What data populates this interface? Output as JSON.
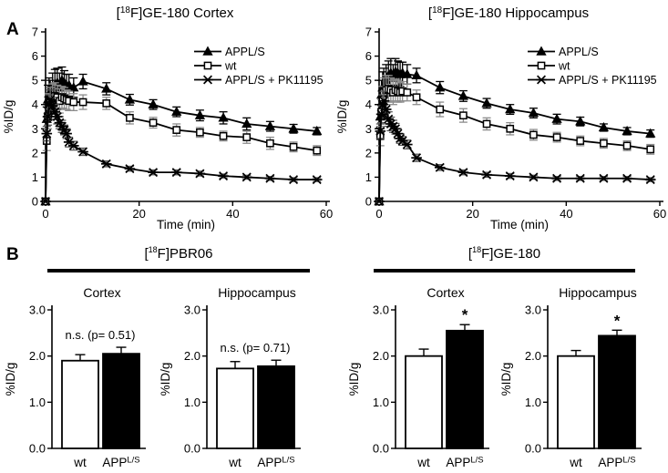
{
  "panelA": {
    "label": "A"
  },
  "panelB": {
    "label": "B"
  },
  "group_headers": [
    {
      "pre": "[",
      "sup": "18",
      "post": "F]PBR06"
    },
    {
      "pre": "[",
      "sup": "18",
      "post": "F]GE-180"
    }
  ],
  "chart_data": [
    {
      "type": "line",
      "title": {
        "pre": "[",
        "sup": "18",
        "post": "F]GE-180 Cortex"
      },
      "xlabel": "Time (min)",
      "ylabel": "%ID/g",
      "xlim": [
        0,
        60
      ],
      "ylim": [
        0,
        7
      ],
      "xticks": [
        0,
        20,
        40,
        60
      ],
      "yticks": [
        0,
        1,
        2,
        3,
        4,
        5,
        6,
        7
      ],
      "legend_position": "top-right",
      "x": [
        0,
        0.25,
        0.5,
        0.75,
        1,
        1.5,
        2,
        2.5,
        3,
        3.5,
        4,
        4.5,
        5,
        6,
        8,
        13,
        18,
        23,
        28,
        33,
        38,
        43,
        48,
        53,
        58
      ],
      "series": [
        {
          "name": "APPL/S",
          "marker": "triangle",
          "err_color": "#000000",
          "values": [
            0,
            3.4,
            4.2,
            4.45,
            4.3,
            4.6,
            4.8,
            4.9,
            4.7,
            5.0,
            4.9,
            4.75,
            4.8,
            4.7,
            4.95,
            4.65,
            4.2,
            4.0,
            3.7,
            3.55,
            3.45,
            3.2,
            3.1,
            3.0,
            2.9
          ],
          "err": [
            0,
            0.5,
            0.6,
            0.65,
            0.7,
            0.7,
            0.65,
            0.6,
            0.6,
            0.55,
            0.5,
            0.5,
            0.45,
            0.4,
            0.3,
            0.25,
            0.22,
            0.2,
            0.2,
            0.22,
            0.25,
            0.25,
            0.2,
            0.18,
            0.15
          ]
        },
        {
          "name": "wt",
          "marker": "square",
          "err_color": "#8c8c8c",
          "values": [
            0,
            2.5,
            3.5,
            3.9,
            4.1,
            4.25,
            4.35,
            4.3,
            4.15,
            4.3,
            4.25,
            4.2,
            4.15,
            4.1,
            4.1,
            4.05,
            3.45,
            3.25,
            2.95,
            2.85,
            2.7,
            2.65,
            2.4,
            2.25,
            2.1
          ],
          "err": [
            0,
            0.4,
            0.5,
            0.55,
            0.6,
            0.6,
            0.55,
            0.5,
            0.5,
            0.45,
            0.45,
            0.4,
            0.4,
            0.35,
            0.3,
            0.25,
            0.25,
            0.22,
            0.25,
            0.2,
            0.2,
            0.25,
            0.25,
            0.2,
            0.2
          ]
        },
        {
          "name": "APPL/S + PK11195",
          "marker": "asterisk",
          "err_color": "#5a5a5a",
          "values": [
            0,
            2.8,
            3.5,
            4.0,
            4.2,
            3.95,
            3.7,
            3.5,
            3.25,
            3.1,
            2.95,
            2.8,
            2.45,
            2.3,
            2.05,
            1.55,
            1.35,
            1.2,
            1.2,
            1.15,
            1.05,
            1.0,
            0.95,
            0.9,
            0.9
          ],
          "err": [
            0,
            0.3,
            0.35,
            0.4,
            0.4,
            0.35,
            0.3,
            0.3,
            0.25,
            0.25,
            0.2,
            0.2,
            0.2,
            0.18,
            0.15,
            0.12,
            0.1,
            0.1,
            0.1,
            0.1,
            0.08,
            0.08,
            0.08,
            0.08,
            0.08
          ]
        }
      ]
    },
    {
      "type": "line",
      "title": {
        "pre": "[",
        "sup": "18",
        "post": "F]GE-180 Hippocampus"
      },
      "xlabel": "Time (min)",
      "ylabel": "%ID/g",
      "xlim": [
        0,
        60
      ],
      "ylim": [
        0,
        7
      ],
      "xticks": [
        0,
        20,
        40,
        60
      ],
      "yticks": [
        0,
        1,
        2,
        3,
        4,
        5,
        6,
        7
      ],
      "legend_position": "top-right",
      "x": [
        0,
        0.25,
        0.5,
        0.75,
        1,
        1.5,
        2,
        2.5,
        3,
        3.5,
        4,
        4.5,
        5,
        6,
        8,
        13,
        18,
        23,
        28,
        33,
        38,
        43,
        48,
        53,
        58
      ],
      "series": [
        {
          "name": "APPL/S",
          "marker": "triangle",
          "err_color": "#000000",
          "values": [
            0,
            3.5,
            4.4,
            4.7,
            4.8,
            5.0,
            5.2,
            5.3,
            5.1,
            5.35,
            5.3,
            5.25,
            5.3,
            5.25,
            5.2,
            4.7,
            4.35,
            4.05,
            3.8,
            3.65,
            3.4,
            3.3,
            3.05,
            2.9,
            2.8
          ],
          "err": [
            0,
            0.5,
            0.6,
            0.65,
            0.7,
            0.65,
            0.6,
            0.6,
            0.55,
            0.55,
            0.5,
            0.5,
            0.45,
            0.4,
            0.3,
            0.25,
            0.22,
            0.2,
            0.2,
            0.2,
            0.2,
            0.18,
            0.15,
            0.15,
            0.15
          ]
        },
        {
          "name": "wt",
          "marker": "square",
          "err_color": "#8c8c8c",
          "values": [
            0,
            2.7,
            3.7,
            4.2,
            4.5,
            4.6,
            4.65,
            4.6,
            4.5,
            4.6,
            4.55,
            4.5,
            4.55,
            4.5,
            4.3,
            3.8,
            3.55,
            3.2,
            3.0,
            2.75,
            2.65,
            2.5,
            2.4,
            2.3,
            2.15
          ],
          "err": [
            0,
            0.4,
            0.5,
            0.55,
            0.6,
            0.6,
            0.55,
            0.5,
            0.5,
            0.45,
            0.45,
            0.4,
            0.4,
            0.35,
            0.3,
            0.3,
            0.28,
            0.25,
            0.25,
            0.22,
            0.2,
            0.2,
            0.2,
            0.2,
            0.2
          ]
        },
        {
          "name": "APPL/S + PK11195",
          "marker": "asterisk",
          "err_color": "#5a5a5a",
          "values": [
            0,
            2.9,
            3.6,
            4.0,
            4.15,
            3.8,
            3.4,
            3.2,
            3.1,
            3.0,
            2.8,
            2.6,
            2.5,
            2.35,
            1.8,
            1.4,
            1.2,
            1.1,
            1.05,
            1.0,
            0.95,
            0.95,
            0.95,
            0.95,
            0.9
          ],
          "err": [
            0,
            0.3,
            0.35,
            0.4,
            0.4,
            0.35,
            0.3,
            0.28,
            0.25,
            0.22,
            0.2,
            0.2,
            0.18,
            0.18,
            0.15,
            0.12,
            0.1,
            0.1,
            0.1,
            0.08,
            0.08,
            0.08,
            0.08,
            0.08,
            0.08
          ]
        }
      ]
    },
    {
      "type": "bar",
      "group": "[18F]PBR06",
      "title": "Cortex",
      "ylabel": "%ID/g",
      "ylim": [
        0,
        3
      ],
      "yticks": [
        "0.0",
        "1.0",
        "2.0",
        "3.0"
      ],
      "categories": [
        {
          "base": "wt",
          "sup": ""
        },
        {
          "base": "APP",
          "sup": "L/S"
        }
      ],
      "values": [
        1.9,
        2.05
      ],
      "errors": [
        0.13,
        0.14
      ],
      "fills": [
        "#ffffff",
        "#000000"
      ],
      "annotation": "n.s. (p= 0.51)",
      "star_on": null
    },
    {
      "type": "bar",
      "group": "[18F]PBR06",
      "title": "Hippocampus",
      "ylabel": "%ID/g",
      "ylim": [
        0,
        3
      ],
      "yticks": [
        "0.0",
        "1.0",
        "2.0",
        "3.0"
      ],
      "categories": [
        {
          "base": "wt",
          "sup": ""
        },
        {
          "base": "APP",
          "sup": "L/S"
        }
      ],
      "values": [
        1.73,
        1.78
      ],
      "errors": [
        0.15,
        0.13
      ],
      "fills": [
        "#ffffff",
        "#000000"
      ],
      "annotation": "n.s. (p= 0.71)",
      "star_on": null
    },
    {
      "type": "bar",
      "group": "[18F]GE-180",
      "title": "Cortex",
      "ylabel": "%ID/g",
      "ylim": [
        0,
        3
      ],
      "yticks": [
        "0.0",
        "1.0",
        "2.0",
        "3.0"
      ],
      "categories": [
        {
          "base": "wt",
          "sup": ""
        },
        {
          "base": "APP",
          "sup": "L/S"
        }
      ],
      "values": [
        2.0,
        2.55
      ],
      "errors": [
        0.15,
        0.13
      ],
      "fills": [
        "#ffffff",
        "#000000"
      ],
      "annotation": "",
      "star_on": 1
    },
    {
      "type": "bar",
      "group": "[18F]GE-180",
      "title": "Hippocampus",
      "ylabel": "%ID/g",
      "ylim": [
        0,
        3
      ],
      "yticks": [
        "0.0",
        "1.0",
        "2.0",
        "3.0"
      ],
      "categories": [
        {
          "base": "wt",
          "sup": ""
        },
        {
          "base": "APP",
          "sup": "L/S"
        }
      ],
      "values": [
        2.0,
        2.44
      ],
      "errors": [
        0.12,
        0.12
      ],
      "fills": [
        "#ffffff",
        "#000000"
      ],
      "annotation": "",
      "star_on": 1
    }
  ]
}
